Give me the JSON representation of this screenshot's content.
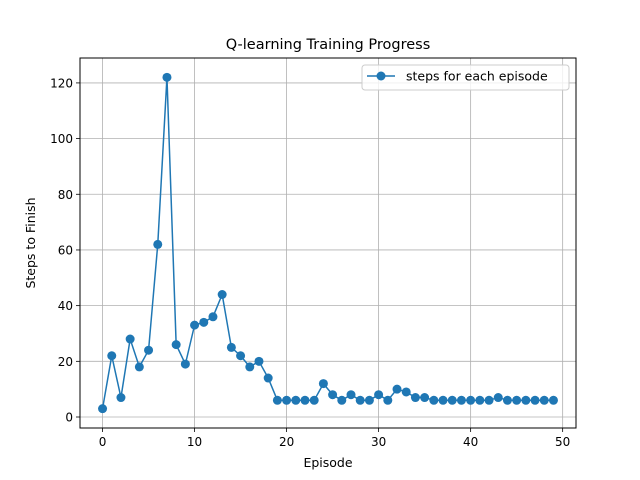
{
  "chart_data": {
    "type": "line",
    "title": "Q-learning Training Progress",
    "xlabel": "Episode",
    "ylabel": "Steps to Finish",
    "xlim": [
      -2.45,
      51.45
    ],
    "ylim": [
      -3.95,
      128.95
    ],
    "xticks": [
      0,
      10,
      20,
      30,
      40,
      50
    ],
    "yticks": [
      0,
      20,
      40,
      60,
      80,
      100,
      120
    ],
    "grid": true,
    "legend_position": "top-right",
    "series": [
      {
        "name": "steps for each episode",
        "color": "#1f77b4",
        "marker": "circle",
        "x": [
          0,
          1,
          2,
          3,
          4,
          5,
          6,
          7,
          8,
          9,
          10,
          11,
          12,
          13,
          14,
          15,
          16,
          17,
          18,
          19,
          20,
          21,
          22,
          23,
          24,
          25,
          26,
          27,
          28,
          29,
          30,
          31,
          32,
          33,
          34,
          35,
          36,
          37,
          38,
          39,
          40,
          41,
          42,
          43,
          44,
          45,
          46,
          47,
          48,
          49
        ],
        "y": [
          3,
          22,
          7,
          28,
          18,
          24,
          62,
          122,
          26,
          19,
          33,
          34,
          36,
          44,
          25,
          22,
          18,
          20,
          14,
          6,
          6,
          6,
          6,
          6,
          12,
          8,
          6,
          8,
          6,
          6,
          8,
          6,
          10,
          9,
          7,
          7,
          6,
          6,
          6,
          6,
          6,
          6,
          6,
          7,
          6,
          6,
          6,
          6,
          6,
          6
        ]
      }
    ]
  }
}
